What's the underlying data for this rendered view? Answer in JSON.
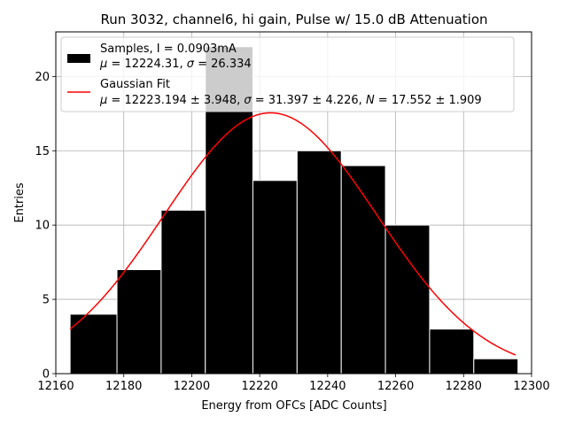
{
  "chart_data": {
    "type": "histogram",
    "title": "Run 3032, channel6, hi gain, Pulse w/ 15.0 dB Attenuation",
    "xlabel": "Energy from OFCs [ADC Counts]",
    "ylabel": "Entries",
    "xlim": [
      12160,
      12300
    ],
    "ylim": [
      0,
      23
    ],
    "xticks": [
      12160,
      12180,
      12200,
      12220,
      12240,
      12260,
      12280,
      12300
    ],
    "yticks": [
      0,
      5,
      10,
      15,
      20
    ],
    "grid": true,
    "legend_position": "top-left",
    "bin_edges": [
      12164.2,
      12178.0,
      12191.0,
      12204.0,
      12218.0,
      12231.0,
      12244.0,
      12257.0,
      12270.0,
      12283.0,
      12296.0
    ],
    "counts": [
      4,
      7,
      11,
      22,
      13,
      15,
      14,
      10,
      3,
      1
    ],
    "fit": {
      "mu": 12223.194,
      "sigma": 31.397,
      "peak": 17.55,
      "x_range": [
        12164.2,
        12295.3
      ]
    },
    "colors": {
      "bars": "#000000",
      "bar_edge": "#ffffff",
      "fit_line": "#ff0000",
      "grid": "#b0b0b0"
    },
    "legend": {
      "samples_line1": "Samples, I = 0.0903mA",
      "samples_line2_mu": "μ",
      "samples_line2_rest1": " = 12224.31, ",
      "samples_line2_sigma": "σ",
      "samples_line2_rest2": " = 26.334",
      "fit_line1": "Gaussian Fit",
      "fit_line2_mu": "μ",
      "fit_line2_rest1": " = 12223.194 ± 3.948, ",
      "fit_line2_sigma": "σ",
      "fit_line2_rest2": " = 31.397 ± 4.226, ",
      "fit_line2_N": "N",
      "fit_line2_rest3": " = 17.552 ± 1.909"
    }
  }
}
